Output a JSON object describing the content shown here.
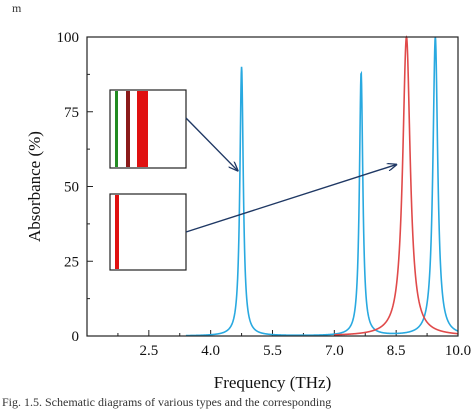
{
  "chart_data": {
    "type": "line",
    "xlabel": "Frequency (THz)",
    "ylabel": "Absorbance (%)",
    "xlim": [
      1.0,
      10.0
    ],
    "ylim": [
      0,
      100
    ],
    "x_tick_labels": [
      "2.5",
      "4.0",
      "5.5",
      "7.0",
      "8.5",
      "10.0"
    ],
    "x_tick_values": [
      2.5,
      4.0,
      5.5,
      7.0,
      8.5,
      10.0
    ],
    "y_tick_labels": [
      "0",
      "25",
      "50",
      "75",
      "100"
    ],
    "y_tick_values": [
      0,
      25,
      50,
      75,
      100
    ],
    "grid": false,
    "series": [
      {
        "color": "#29a9e0",
        "peaks": [
          {
            "x": 4.75,
            "y": 90,
            "width": 0.1
          },
          {
            "x": 7.65,
            "y": 88,
            "width": 0.1
          },
          {
            "x": 9.45,
            "y": 100,
            "width": 0.14
          }
        ],
        "baseline_x_start": 3.4
      },
      {
        "color": "#e04a4a",
        "peaks": [
          {
            "x": 8.75,
            "y": 100,
            "width": 0.22
          }
        ],
        "baseline_x_start": 7.0
      }
    ],
    "insets": [
      {
        "stripes": [
          {
            "color": "#228b22"
          },
          {
            "color": "#8b1a1a"
          },
          {
            "color": "#e01010"
          }
        ],
        "arrow_target": {
          "x": 4.75,
          "y": 56
        }
      },
      {
        "stripes": [
          {
            "color": "#e01010"
          }
        ],
        "arrow_target": {
          "x": 8.6,
          "y": 58
        }
      }
    ],
    "arrow_color": "#1f3864"
  },
  "caption": {
    "top_fragment": "m",
    "bottom_fragment": "Fig. 1.5. Schematic diagrams of various types and the corresponding"
  }
}
